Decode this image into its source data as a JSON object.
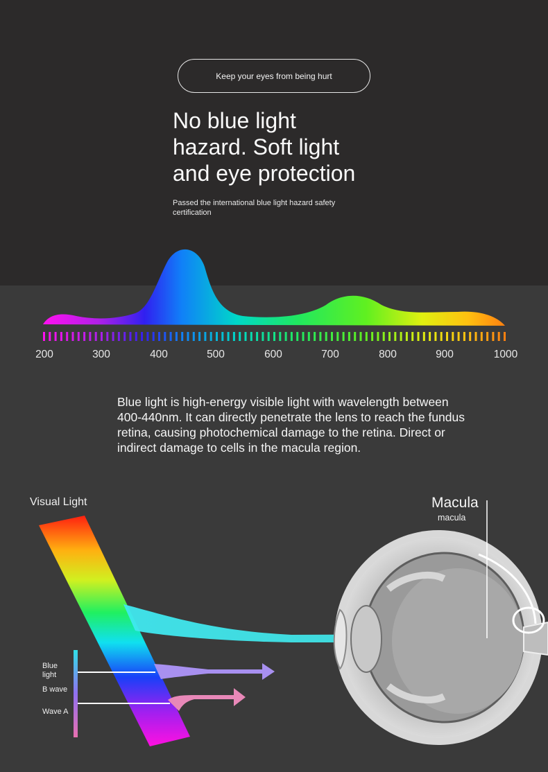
{
  "badge": {
    "text": "Keep your eyes from being hurt"
  },
  "headline": {
    "line1": "No blue light",
    "line2": "hazard. Soft light",
    "line3": "and eye protection"
  },
  "subhead": {
    "text": "Passed the international blue light hazard safety certification"
  },
  "spectrum": {
    "ticks": [
      "200",
      "300",
      "400",
      "500",
      "600",
      "700",
      "800",
      "900",
      "1000"
    ]
  },
  "description": {
    "text": "Blue light is high-energy visible light with wavelength between 400-440nm. It can directly penetrate the lens to reach the fundus retina, causing photochemical damage to the retina. Direct or indirect damage to cells in the macula region."
  },
  "diagram": {
    "visual_light": "Visual Light",
    "macula_title": "Macula",
    "macula_sub": "macula",
    "labels": {
      "blue": "Blue light",
      "b_wave": "B wave",
      "wave_a": "Wave A"
    }
  },
  "colors": {
    "blue_beam": "#6ff0f0",
    "violet_beam": "#a890f0",
    "pink_beam": "#e888b8"
  }
}
